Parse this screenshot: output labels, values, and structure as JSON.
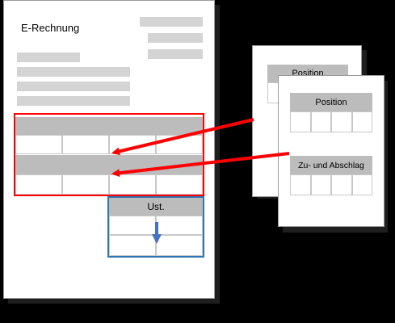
{
  "invoice": {
    "title": "E-Rechnung"
  },
  "tax_box": {
    "label": "Ust."
  },
  "cards": {
    "back": {
      "label": "Position"
    },
    "front": {
      "position_label": "Position",
      "allowance_label": "Zu- und Abschlag"
    }
  },
  "colors": {
    "background": "#000000",
    "page": "#ffffff",
    "placeholder_bar": "#d4d4d4",
    "table_header": "#bcbcbc",
    "highlight_red": "#ff0000",
    "tax_box_border": "#2e75b6",
    "down_arrow": "#4472c4"
  },
  "icons": {
    "down_arrow": "arrow-down-icon",
    "flow_arrow": "arrow-left-icon"
  }
}
